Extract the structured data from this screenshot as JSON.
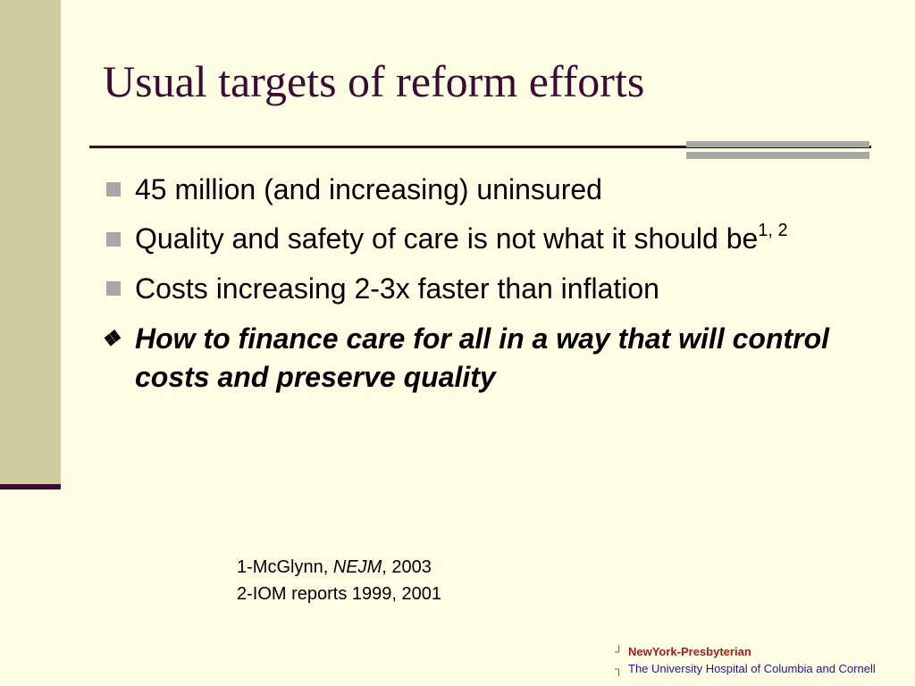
{
  "slide": {
    "title": "Usual targets of reform efforts",
    "bullets": [
      {
        "text": "45 million (and increasing) uninsured"
      },
      {
        "text": "Quality and safety of care is not what it should be",
        "superscript": "1, 2"
      },
      {
        "text": "Costs increasing 2-3x faster than inflation"
      }
    ],
    "question": {
      "icon": "diamond-bullet-icon",
      "text": "How to finance care for all in a way that will control costs and preserve quality"
    },
    "references": {
      "ref1_prefix": "1-McGlynn, ",
      "ref1_journal": "NEJM",
      "ref1_suffix": ", 2003",
      "ref2": "2-IOM reports 1999, 2001"
    },
    "logo": {
      "name": "NewYork-Presbyterian",
      "tagline": "The University Hospital of Columbia and Cornell"
    }
  },
  "colors": {
    "background": "#FFFDE3",
    "left_band": "#CFCCA0",
    "title": "#3B0A35",
    "rule": "#3B0A35",
    "grey_accent": "#A7A7A7",
    "logo_name": "#B01818",
    "logo_tagline": "#1A1A8C"
  }
}
